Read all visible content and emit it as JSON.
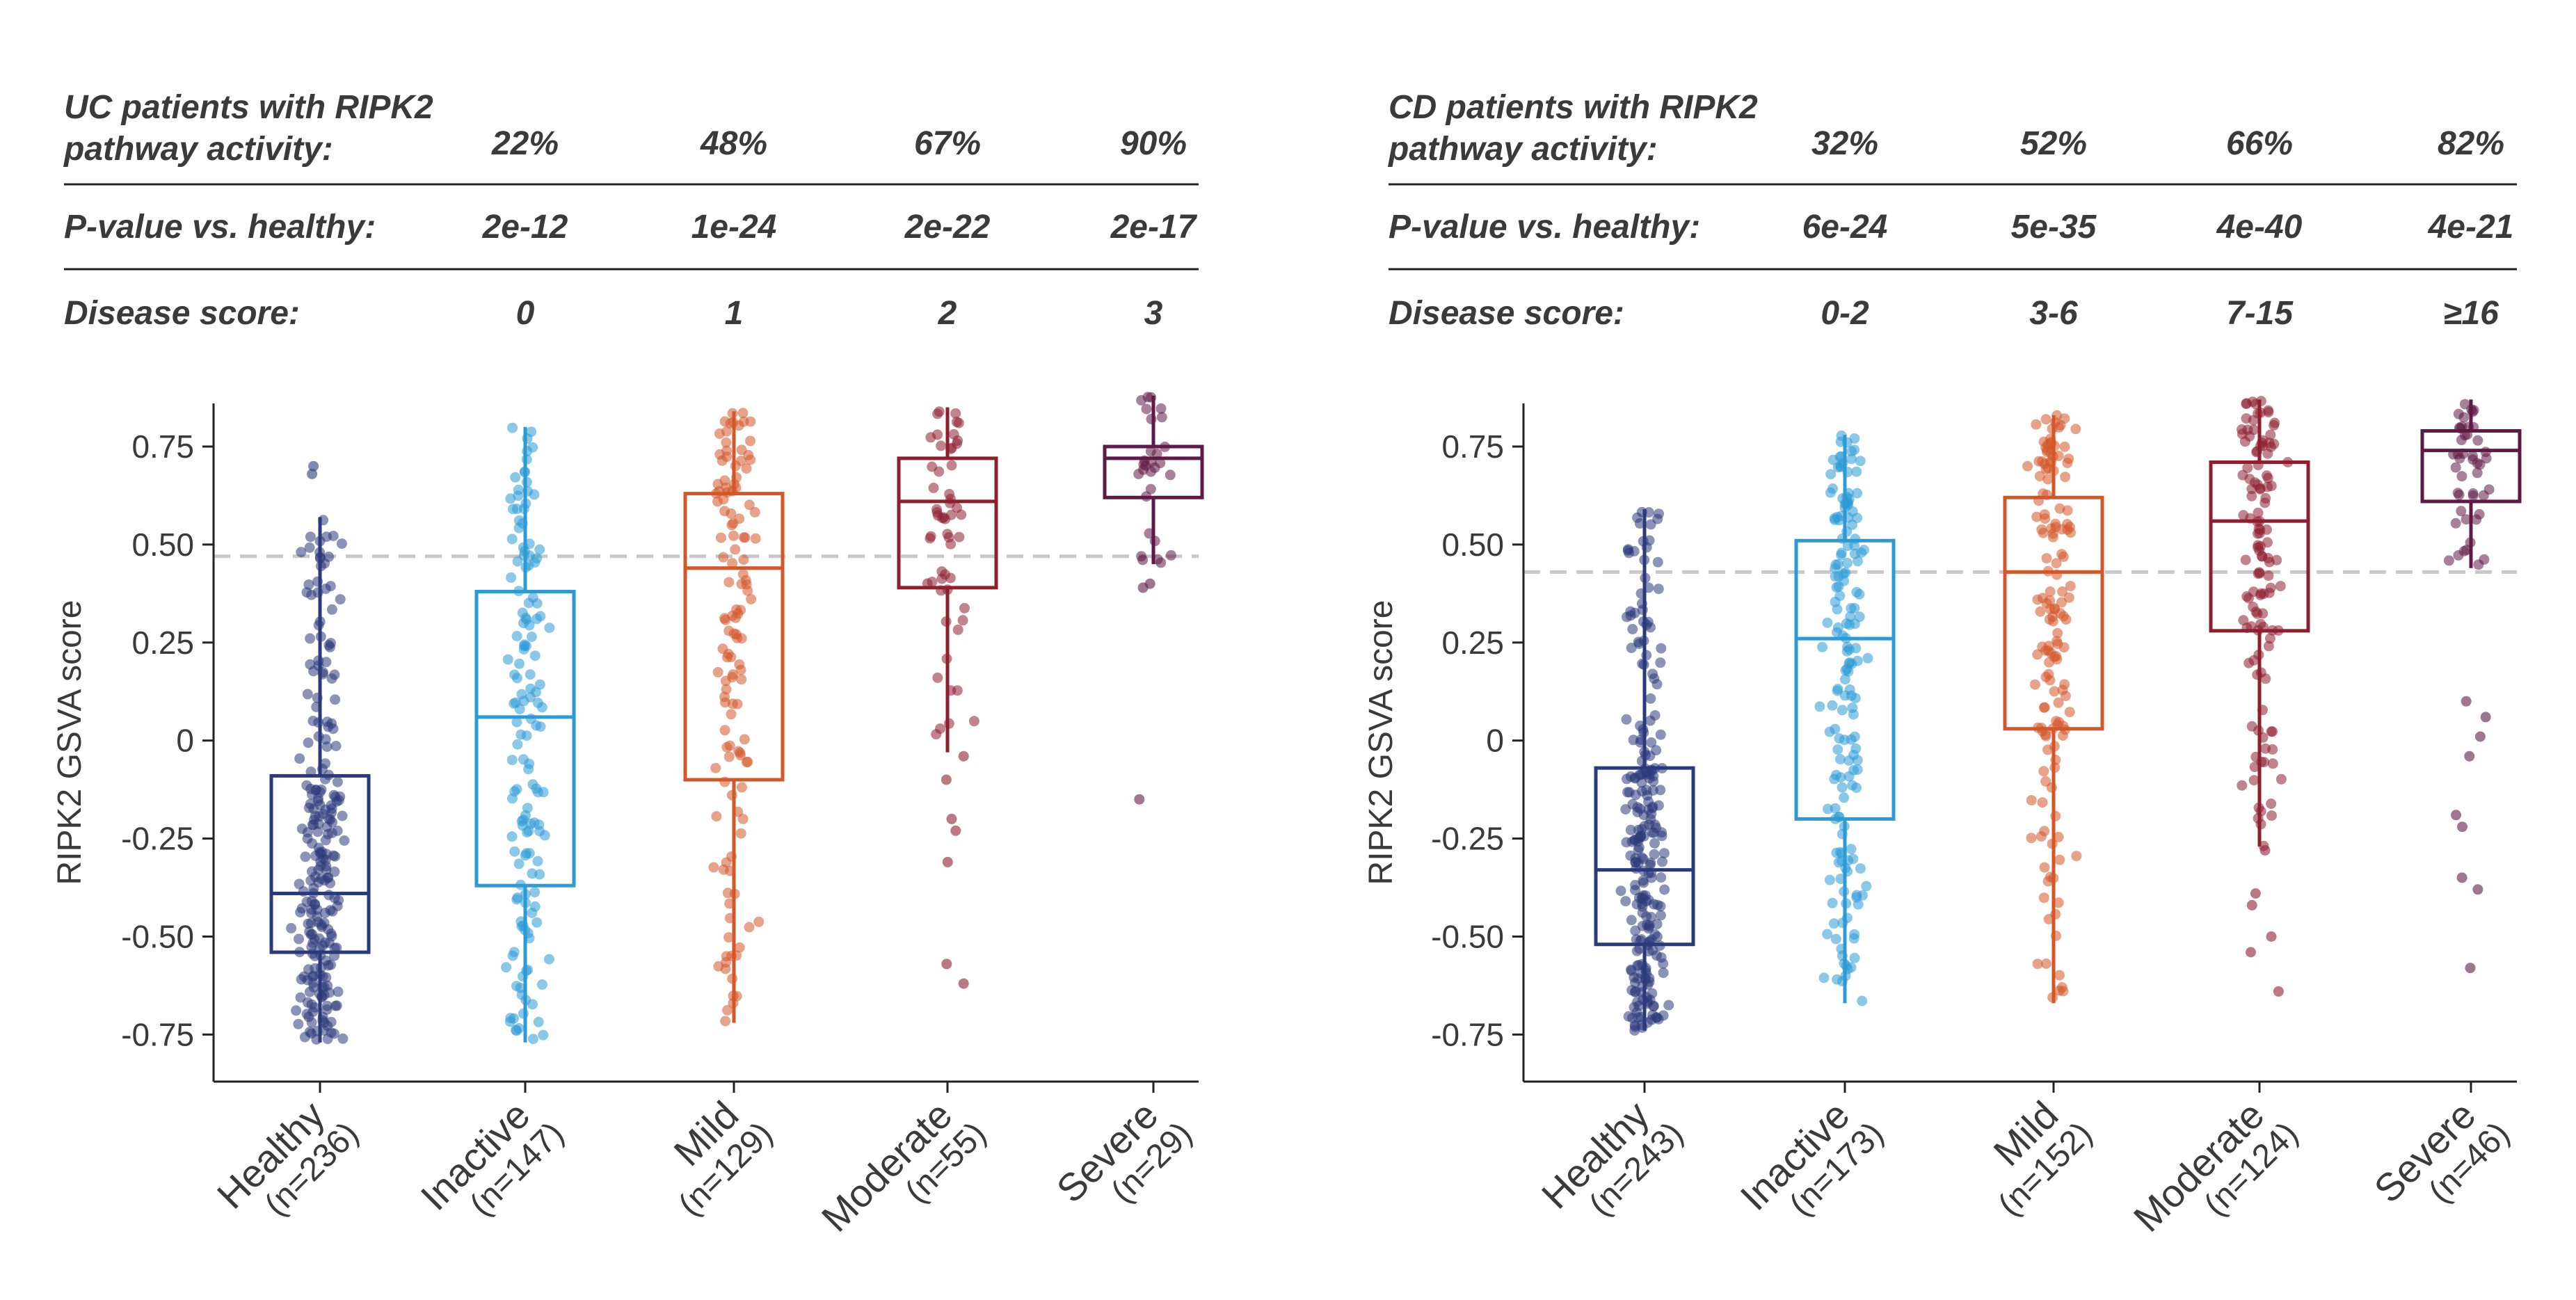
{
  "panels": [
    {
      "header": {
        "title_line1": "UC patients with RIPK2",
        "title_line2": "pathway activity:",
        "activity": [
          "22%",
          "48%",
          "67%",
          "90%"
        ],
        "pvalue_label": "P-value vs. healthy:",
        "pvalues": [
          "2e-12",
          "1e-24",
          "2e-22",
          "2e-17"
        ],
        "score_label": "Disease score:",
        "scores": [
          "0",
          "1",
          "2",
          "3"
        ]
      }
    },
    {
      "header": {
        "title_line1": "CD patients with RIPK2",
        "title_line2": "pathway activity:",
        "activity": [
          "32%",
          "52%",
          "66%",
          "82%"
        ],
        "pvalue_label": "P-value vs. healthy:",
        "pvalues": [
          "6e-24",
          "5e-35",
          "4e-40",
          "4e-21"
        ],
        "score_label": "Disease score:",
        "scores": [
          "0-2",
          "3-6",
          "7-15",
          "≥16"
        ]
      }
    }
  ],
  "chart_data": [
    {
      "type": "box",
      "ylabel": "RIPK2 GSVA score",
      "ylim": [
        -0.87,
        0.86
      ],
      "yticks": [
        0.75,
        0.5,
        0.25,
        0,
        -0.25,
        -0.5,
        -0.75
      ],
      "ytick_labels": [
        "0.75",
        "0.50",
        "0.25",
        "0",
        "-0.25",
        "-0.50",
        "-0.75"
      ],
      "threshold": 0.47,
      "categories": [
        "Healthy",
        "Inactive",
        "Mild",
        "Moderate",
        "Severe"
      ],
      "counts": [
        "(n=236)",
        "(n=147)",
        "(n=129)",
        "(n=55)",
        "(n=29)"
      ],
      "colors": [
        "#2b3a7a",
        "#2b9ad6",
        "#d4572a",
        "#8e1f2f",
        "#5e1a45"
      ],
      "boxes": [
        {
          "low": -0.77,
          "q1": -0.54,
          "median": -0.39,
          "q3": -0.09,
          "high": 0.57
        },
        {
          "low": -0.77,
          "q1": -0.37,
          "median": 0.06,
          "q3": 0.38,
          "high": 0.8
        },
        {
          "low": -0.72,
          "q1": -0.1,
          "median": 0.44,
          "q3": 0.63,
          "high": 0.84
        },
        {
          "low": -0.03,
          "q1": 0.39,
          "median": 0.61,
          "q3": 0.72,
          "high": 0.85
        },
        {
          "low": 0.45,
          "q1": 0.62,
          "median": 0.72,
          "q3": 0.75,
          "high": 0.88
        }
      ],
      "outliers": [
        [
          0.68,
          0.7
        ],
        [],
        [],
        [
          -0.04,
          -0.1,
          -0.2,
          -0.23,
          -0.31,
          -0.57,
          -0.62
        ],
        [
          0.4,
          0.39,
          -0.15
        ]
      ]
    },
    {
      "type": "box",
      "ylabel": "RIPK2 GSVA score",
      "ylim": [
        -0.87,
        0.86
      ],
      "yticks": [
        0.75,
        0.5,
        0.25,
        0,
        -0.25,
        -0.5,
        -0.75
      ],
      "ytick_labels": [
        "0.75",
        "0.50",
        "0.25",
        "0",
        "-0.25",
        "-0.50",
        "-0.75"
      ],
      "threshold": 0.43,
      "categories": [
        "Healthy",
        "Inactive",
        "Mild",
        "Moderate",
        "Severe"
      ],
      "counts": [
        "(n=243)",
        "(n=173)",
        "(n=152)",
        "(n=124)",
        "(n=46)"
      ],
      "colors": [
        "#2b3a7a",
        "#2b9ad6",
        "#d4572a",
        "#8e1f2f",
        "#5e1a45"
      ],
      "boxes": [
        {
          "low": -0.74,
          "q1": -0.52,
          "median": -0.33,
          "q3": -0.07,
          "high": 0.59
        },
        {
          "low": -0.67,
          "q1": -0.2,
          "median": 0.26,
          "q3": 0.51,
          "high": 0.78
        },
        {
          "low": -0.67,
          "q1": 0.03,
          "median": 0.43,
          "q3": 0.62,
          "high": 0.83
        },
        {
          "low": -0.27,
          "q1": 0.28,
          "median": 0.56,
          "q3": 0.71,
          "high": 0.87
        },
        {
          "low": 0.44,
          "q1": 0.61,
          "median": 0.74,
          "q3": 0.79,
          "high": 0.87
        }
      ],
      "outliers": [
        [],
        [],
        [],
        [
          -0.28,
          -0.39,
          -0.42,
          -0.5,
          -0.54,
          -0.64
        ],
        [
          0.1,
          0.06,
          0.01,
          -0.04,
          -0.19,
          -0.22,
          -0.35,
          -0.38,
          -0.58
        ]
      ]
    }
  ]
}
